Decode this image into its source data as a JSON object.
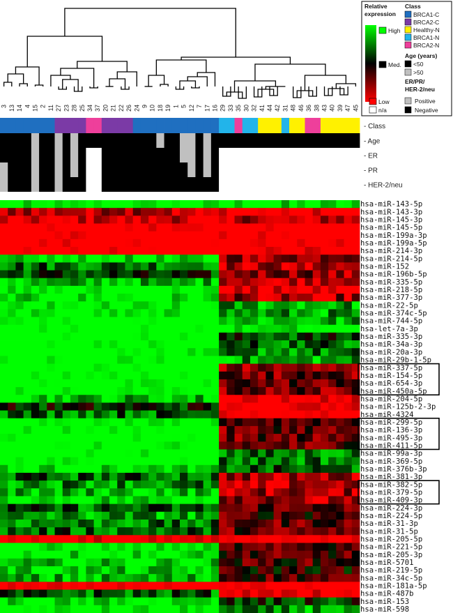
{
  "chart_data": {
    "type": "heatmap",
    "samples": [
      "3",
      "13",
      "14",
      "4",
      "15",
      "2",
      "11",
      "27",
      "23",
      "28",
      "25",
      "34",
      "37",
      "20",
      "21",
      "22",
      "26",
      "24",
      "9",
      "10",
      "18",
      "19",
      "1",
      "5",
      "12",
      "7",
      "17",
      "16",
      "29",
      "33",
      "35",
      "30",
      "32",
      "41",
      "44",
      "42",
      "31",
      "48",
      "46",
      "36",
      "38",
      "43",
      "40",
      "39",
      "47",
      "45"
    ],
    "sample_class": [
      "BRCA1-C",
      "BRCA1-C",
      "BRCA1-C",
      "BRCA1-C",
      "BRCA1-C",
      "BRCA1-C",
      "BRCA1-C",
      "BRCA2-C",
      "BRCA2-C",
      "BRCA2-C",
      "BRCA2-C",
      "BRCA2-N",
      "BRCA2-N",
      "BRCA2-C",
      "BRCA2-C",
      "BRCA2-C",
      "BRCA2-C",
      "BRCA1-C",
      "BRCA1-C",
      "BRCA1-C",
      "BRCA1-C",
      "BRCA1-C",
      "BRCA1-C",
      "BRCA1-C",
      "BRCA1-C",
      "BRCA1-C",
      "BRCA1-C",
      "BRCA1-C",
      "BRCA1-N",
      "BRCA1-N",
      "BRCA2-N",
      "BRCA1-N",
      "BRCA1-N",
      "Healthy-N",
      "Healthy-N",
      "Healthy-N",
      "BRCA1-N",
      "Healthy-N",
      "Healthy-N",
      "BRCA2-N",
      "BRCA2-N",
      "Healthy-N",
      "Healthy-N",
      "Healthy-N",
      "Healthy-N",
      "Healthy-N"
    ],
    "tracks": {
      "Age": [
        "<50",
        "<50",
        "<50",
        "<50",
        ">50",
        "<50",
        "<50",
        ">50",
        "<50",
        ">50",
        "<50",
        "<50",
        "<50",
        "<50",
        "<50",
        "<50",
        "<50",
        "<50",
        "<50",
        "<50",
        ">50",
        "<50",
        "<50",
        ">50",
        ">50",
        "<50",
        ">50",
        "<50",
        "<50",
        "<50",
        "<50",
        "<50",
        "<50",
        "<50",
        "<50",
        "<50",
        "<50",
        "<50",
        "<50",
        "<50",
        "<50",
        "<50",
        "<50",
        "<50",
        "<50",
        "<50"
      ],
      "ER": [
        "Negative",
        "Negative",
        "Negative",
        "Negative",
        "Positive",
        "Negative",
        "Negative",
        "Positive",
        "Negative",
        "Positive",
        "Negative",
        "n/a",
        "n/a",
        "Negative",
        "Negative",
        "Negative",
        "Negative",
        "Negative",
        "Negative",
        "Negative",
        "Negative",
        "Negative",
        "Negative",
        "Positive",
        "Positive",
        "Negative",
        "Positive",
        "Negative",
        "n/a",
        "n/a",
        "n/a",
        "n/a",
        "n/a",
        "n/a",
        "n/a",
        "n/a",
        "n/a",
        "n/a",
        "n/a",
        "n/a",
        "n/a",
        "n/a",
        "n/a",
        "n/a",
        "n/a",
        "n/a"
      ],
      "PR": [
        "Positive",
        "Negative",
        "Negative",
        "Negative",
        "Positive",
        "Negative",
        "Negative",
        "Positive",
        "Negative",
        "Positive",
        "Negative",
        "n/a",
        "n/a",
        "Negative",
        "Negative",
        "Negative",
        "Negative",
        "Negative",
        "Negative",
        "Negative",
        "Negative",
        "Negative",
        "Negative",
        "Negative",
        "Positive",
        "Negative",
        "Positive",
        "Negative",
        "n/a",
        "n/a",
        "n/a",
        "n/a",
        "n/a",
        "n/a",
        "n/a",
        "n/a",
        "n/a",
        "n/a",
        "n/a",
        "n/a",
        "n/a",
        "n/a",
        "n/a",
        "n/a",
        "n/a",
        "n/a"
      ],
      "HER-2/neu": [
        "Positive",
        "Negative",
        "Negative",
        "Negative",
        "Positive",
        "Negative",
        "Negative",
        "Positive",
        "Negative",
        "Negative",
        "Negative",
        "n/a",
        "n/a",
        "Negative",
        "Negative",
        "Negative",
        "Negative",
        "Negative",
        "Negative",
        "Negative",
        "Negative",
        "Negative",
        "Negative",
        "Negative",
        "Negative",
        "Negative",
        "Negative",
        "Negative",
        "n/a",
        "n/a",
        "n/a",
        "n/a",
        "n/a",
        "n/a",
        "n/a",
        "n/a",
        "n/a",
        "n/a",
        "n/a",
        "n/a",
        "n/a",
        "n/a",
        "n/a",
        "n/a",
        "n/a",
        "n/a"
      ]
    },
    "track_labels": [
      "- Class",
      "- Age",
      "- ER",
      "- PR",
      "- HER-2/neu"
    ],
    "mirnas": [
      "hsa-miR-143-5p",
      "hsa-miR-143-3p",
      "hsa-miR-145-3p",
      "hsa-miR-145-5p",
      "hsa-miR-199a-3p",
      "hsa-miR-199a-5p",
      "hsa-miR-214-3p",
      "hsa-miR-214-5p",
      "hsa-miR-152",
      "hsa-miR-196b-5p",
      "hsa-miR-335-5p",
      "hsa-miR-218-5p",
      "hsa-miR-377-3p",
      "hsa-miR-22-5p",
      "hsa-miR-374c-5p",
      "hsa-miR-744-5p",
      "hsa-let-7a-3p",
      "hsa-miR-335-3p",
      "hsa-miR-34a-3p",
      "hsa-miR-20a-3p",
      "hsa-miR-29b-1-5p",
      "hsa-miR-337-5p",
      "hsa-miR-154-5p",
      "hsa-miR-654-3p",
      "hsa-miR-450a-5p",
      "hsa-miR-204-5p",
      "hsa-miR-125b-2-3p",
      "hsa-miR-4324",
      "hsa-miR-299-5p",
      "hsa-miR-136-3p",
      "hsa-miR-495-3p",
      "hsa-miR-411-5p",
      "hsa-miR-99a-3p",
      "hsa-miR-369-5p",
      "hsa-miR-376b-3p",
      "hsa-miR-381-3p",
      "hsa-miR-382-5p",
      "hsa-miR-379-5p",
      "hsa-miR-409-3p",
      "hsa-miR-224-3p",
      "hsa-miR-224-5p",
      "hsa-miR-31-3p",
      "hsa-miR-31-5p",
      "hsa-miR-205-5p",
      "hsa-miR-221-5p",
      "hsa-miR-205-3p",
      "hsa-miR-5701",
      "hsa-miR-219-5p",
      "hsa-miR-34c-5p",
      "hsa-miR-181a-5p",
      "hsa-miR-487b",
      "hsa-miR-153",
      "hsa-miR-598"
    ],
    "row_profile": [
      -0.8,
      0.9,
      0.6,
      1,
      1,
      1,
      0.95,
      0.5,
      0.55,
      0.45,
      0.7,
      0.75,
      0.5,
      -0.5,
      -0.5,
      -0.55,
      -0.8,
      -0.2,
      -0.3,
      -0.4,
      -0.5,
      0.4,
      0.35,
      0.3,
      0.35,
      0.9,
      0.95,
      1,
      0.3,
      0.3,
      0.3,
      0.3,
      -0.4,
      -0.35,
      -0.3,
      0.5,
      0.55,
      0.5,
      0.5,
      0.3,
      0.2,
      0.3,
      0.3,
      1,
      0.2,
      0.2,
      0.2,
      0.1,
      0.25,
      1,
      0.9,
      -0.2,
      -0.5
    ],
    "left_profile": [
      -0.9,
      0.6,
      0.7,
      1,
      1,
      1,
      1,
      -0.8,
      -0.3,
      -0.2,
      -0.6,
      -0.9,
      -0.8,
      -0.9,
      -0.9,
      -1,
      -1,
      -1,
      -1,
      -1,
      -1,
      -1,
      -1,
      -1,
      -1,
      -0.6,
      -0.1,
      -0.3,
      -1,
      -1,
      -1,
      -1,
      -1,
      -1,
      -0.8,
      -0.3,
      -0.4,
      -0.6,
      -0.7,
      -0.3,
      -0.5,
      -0.4,
      -0.3,
      0.9,
      -0.9,
      -0.8,
      -0.7,
      -0.7,
      -0.6,
      1,
      -0.3,
      -0.8,
      -0.9
    ],
    "scale": [
      "High",
      "Med.",
      "Low"
    ],
    "boxed_groups": [
      [
        21,
        24
      ],
      [
        28,
        31
      ],
      [
        36,
        38
      ]
    ]
  },
  "legend": {
    "relative_expression": [
      "Relative",
      "expression"
    ],
    "high": "High",
    "med": "Med.",
    "low": "Low",
    "na": "n/a",
    "class_title": "Class",
    "classes": [
      {
        "name": "BRCA1-C",
        "color": "#1f6fc0"
      },
      {
        "name": "BRCA2-C",
        "color": "#7b3aa6"
      },
      {
        "name": "Healthy-N",
        "color": "#fff100"
      },
      {
        "name": "BRCA1-N",
        "color": "#22b4ea"
      },
      {
        "name": "BRCA2-N",
        "color": "#ee3f9b"
      }
    ],
    "age_title": "Age (years)",
    "age_lt": "<50",
    "age_gt": ">50",
    "receptor_title": [
      "ER/PR/",
      "HER-2/neu"
    ],
    "positive": "Positive",
    "negative": "Negative"
  },
  "colors": {
    "high": "#00ff00",
    "med": "#000000",
    "low": "#ff0000",
    "na": "#ffffff",
    "positive": "#c0c0c0",
    "negative": "#000000",
    "age_lt": "#000000",
    "age_gt": "#c0c0c0"
  }
}
